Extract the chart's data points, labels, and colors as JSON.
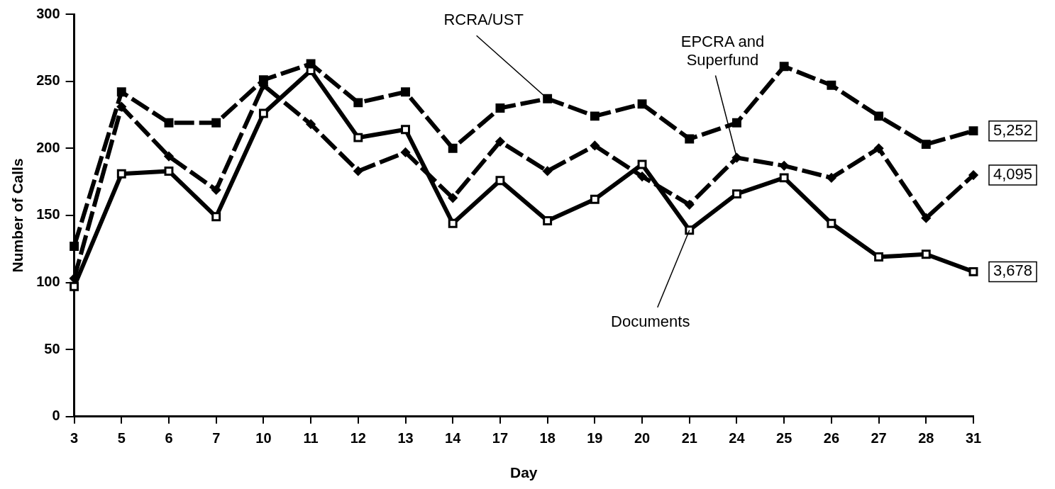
{
  "chart_data": {
    "type": "line",
    "xlabel": "Day",
    "ylabel": "Number of Calls",
    "categories": [
      "3",
      "5",
      "6",
      "7",
      "10",
      "11",
      "12",
      "13",
      "14",
      "17",
      "18",
      "19",
      "20",
      "21",
      "24",
      "25",
      "26",
      "27",
      "28",
      "31"
    ],
    "ylim": [
      0,
      300
    ],
    "yticks": [
      0,
      50,
      100,
      150,
      200,
      250,
      300
    ],
    "grid": false,
    "legend": false,
    "series": [
      {
        "name": "RCRA/UST",
        "color": "#000000",
        "marker": "square",
        "line_style": "dashed",
        "values": [
          127,
          242,
          219,
          219,
          251,
          263,
          234,
          242,
          200,
          230,
          237,
          224,
          233,
          207,
          219,
          261,
          247,
          224,
          203,
          213
        ]
      },
      {
        "name": "EPCRA and Superfund",
        "color": "#000000",
        "marker": "diamond",
        "line_style": "dashed",
        "values": [
          103,
          231,
          194,
          169,
          247,
          218,
          183,
          197,
          163,
          205,
          183,
          202,
          179,
          158,
          193,
          187,
          178,
          200,
          148,
          180
        ]
      },
      {
        "name": "Documents",
        "color": "#000000",
        "marker": "square",
        "line_style": "solid",
        "values": [
          97,
          181,
          183,
          149,
          226,
          258,
          208,
          214,
          144,
          176,
          146,
          162,
          188,
          139,
          166,
          178,
          144,
          119,
          121,
          108
        ]
      }
    ],
    "annotations": [
      {
        "text": "5,252",
        "x": "31",
        "y": 213
      },
      {
        "text": "4,095",
        "x": "31",
        "y": 180
      },
      {
        "text": "3,678",
        "x": "31",
        "y": 108
      }
    ]
  }
}
